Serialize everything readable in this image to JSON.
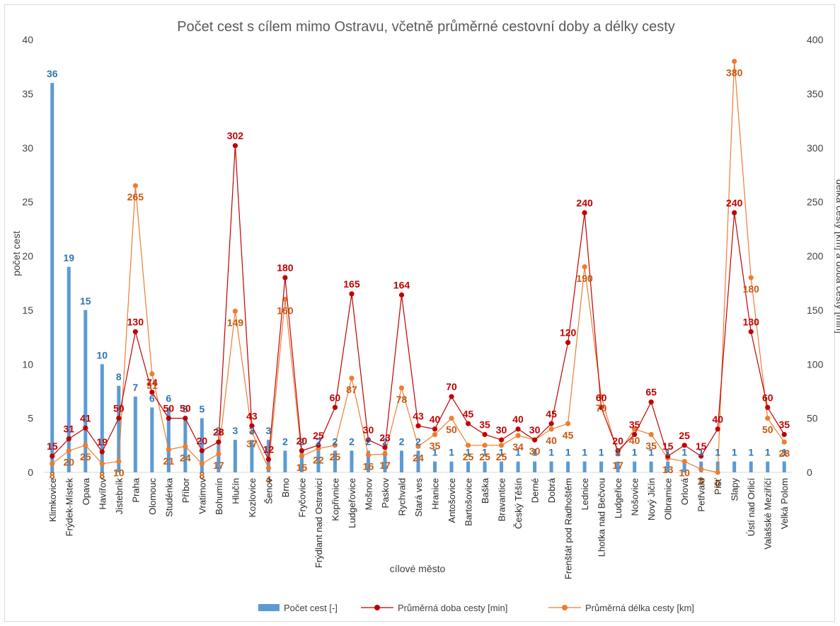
{
  "chart_data": {
    "type": "bar",
    "title": "Počet cest s cílem mimo Ostravu, včetně průměrné cestovní doby a délky cesty",
    "xlabel": "cílové město",
    "ylabel": "počet cest",
    "y2label": "délka cesty [km] a doba cesty [min]",
    "ylim": [
      0,
      40
    ],
    "y2lim": [
      0,
      400
    ],
    "yticks": [
      "0",
      "5",
      "10",
      "15",
      "20",
      "25",
      "30",
      "35",
      "40"
    ],
    "y2ticks": [
      "0",
      "50",
      "100",
      "150",
      "200",
      "250",
      "300",
      "350",
      "400"
    ],
    "grid": false,
    "legend_position": "bottom",
    "colors": {
      "bars": "#5b9bd5",
      "time": "#c00000",
      "distance": "#ed7d31",
      "barLabel": "#2e75b6",
      "timeLabel": "#c00000",
      "distLabel": "#c55a11"
    },
    "categories": [
      "Klimkovice",
      "Frýdek-Místek",
      "Opava",
      "Havířov",
      "Jistebník",
      "Praha",
      "Olomouc",
      "Studénka",
      "Příbor",
      "Vratimov",
      "Bohumín",
      "Hlučín",
      "Kozlovice",
      "Šenov",
      "Brno",
      "Fryčovice",
      "Frýdlant nad Ostravicí",
      "Kopřivnice",
      "Ludgeřovice",
      "Mošnov",
      "Paskov",
      "Rychvald",
      "Stará ves",
      "Hranice",
      "Antošovice",
      "Bartošovice",
      "Baška",
      "Bravantice",
      "Český Těšín",
      "Derné",
      "Dobrá",
      "Frenštát pod Radhoštěm",
      "Lednice",
      "Lhotka nad Bečvou",
      "Ludgeřice",
      "Nošovice",
      "Nový Jičín",
      "Olbramice",
      "Orlová",
      "Petřvald",
      "Píšť",
      "Slapy",
      "Ústí nad Orlicí",
      "Valašské Meziříčí",
      "Velká Polom"
    ],
    "series": [
      {
        "name": "Počet cest [-]",
        "axis": "left",
        "type": "bar",
        "values": [
          36,
          19,
          15,
          10,
          8,
          7,
          6,
          6,
          5,
          5,
          3,
          3,
          3,
          3,
          2,
          2,
          2,
          2,
          2,
          2,
          2,
          2,
          2,
          1,
          1,
          1,
          1,
          1,
          1,
          1,
          1,
          1,
          1,
          1,
          1,
          1,
          1,
          1,
          1,
          1,
          1,
          1,
          1,
          1,
          1
        ]
      },
      {
        "name": "Průměrná doba cesty [min]",
        "axis": "right",
        "type": "line",
        "values": [
          15,
          31,
          41,
          19,
          50,
          130,
          74,
          50,
          50,
          20,
          28,
          302,
          43,
          12,
          180,
          20,
          25,
          60,
          165,
          30,
          23,
          164,
          43,
          40,
          70,
          45,
          35,
          30,
          40,
          30,
          45,
          120,
          240,
          60,
          20,
          35,
          65,
          15,
          25,
          15,
          40,
          240,
          130,
          60,
          35
        ]
      },
      {
        "name": "Průměrná délka cesty [km]",
        "axis": "right",
        "type": "line",
        "values": [
          8,
          20,
          25,
          8,
          10,
          265,
          91,
          21,
          24,
          8,
          17,
          149,
          37,
          4,
          160,
          15,
          22,
          25,
          87,
          16,
          17,
          78,
          24,
          35,
          50,
          25,
          25,
          25,
          34,
          30,
          40,
          45,
          190,
          70,
          17,
          40,
          35,
          13,
          10,
          3,
          0,
          380,
          180,
          50,
          28
        ]
      }
    ]
  }
}
